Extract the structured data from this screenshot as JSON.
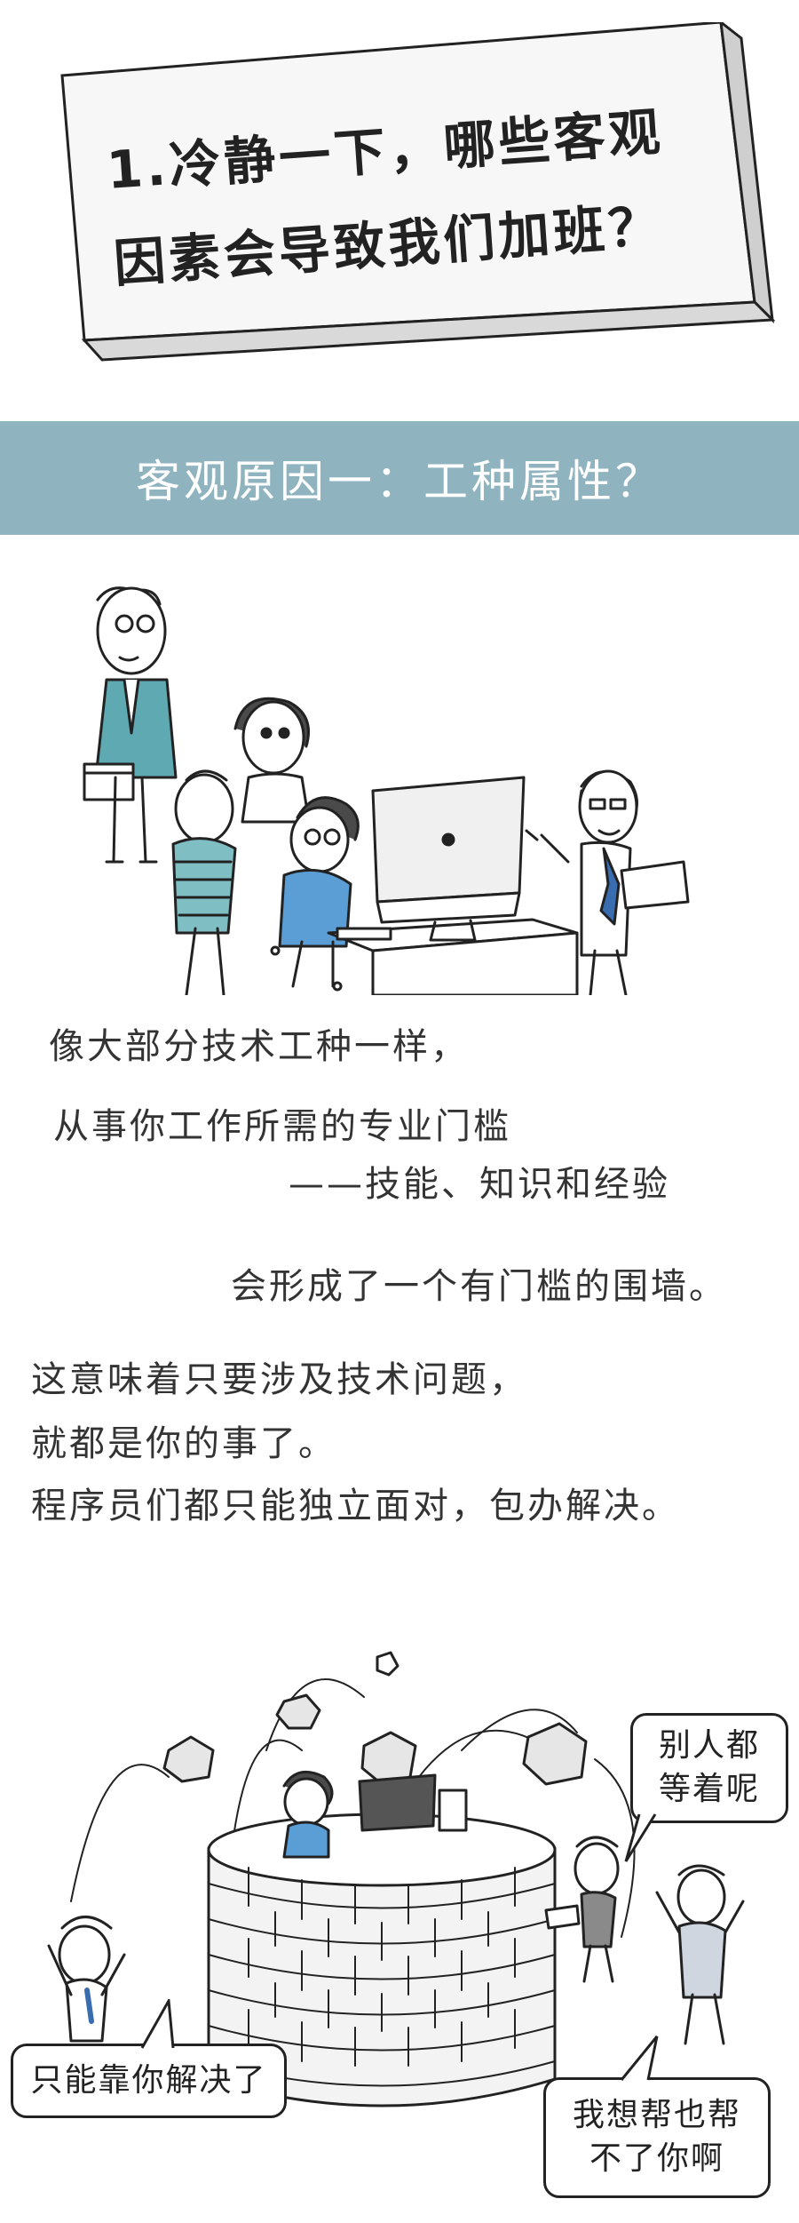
{
  "title": {
    "line1": "1.冷静一下，哪些客观",
    "line2": "因素会导致我们加班？"
  },
  "banner": {
    "text": "客观原因一：工种属性？"
  },
  "scene1": {
    "monitor_label": ""
  },
  "paragraphs": {
    "p1": "像大部分技术工种一样，",
    "p2": "从事你工作所需的专业门槛",
    "p3": "——技能、知识和经验",
    "p4": "会形成了一个有门槛的围墙。",
    "p5": "这意味着只要涉及技术问题，",
    "p6": "就都是你的事了。",
    "p7": "程序员们都只能独立面对，包办解决。"
  },
  "bubbles": {
    "waiting": {
      "line1": "别人都",
      "line2": "等着呢"
    },
    "only_you": {
      "text": "只能靠你解决了"
    },
    "cant_help": {
      "line1": "我想帮也帮",
      "line2": "不了你啊"
    }
  },
  "colors": {
    "banner": "#8fb3bf",
    "teal": "#5fa9b3",
    "blue": "#4d8ec9",
    "outline": "#222222"
  }
}
